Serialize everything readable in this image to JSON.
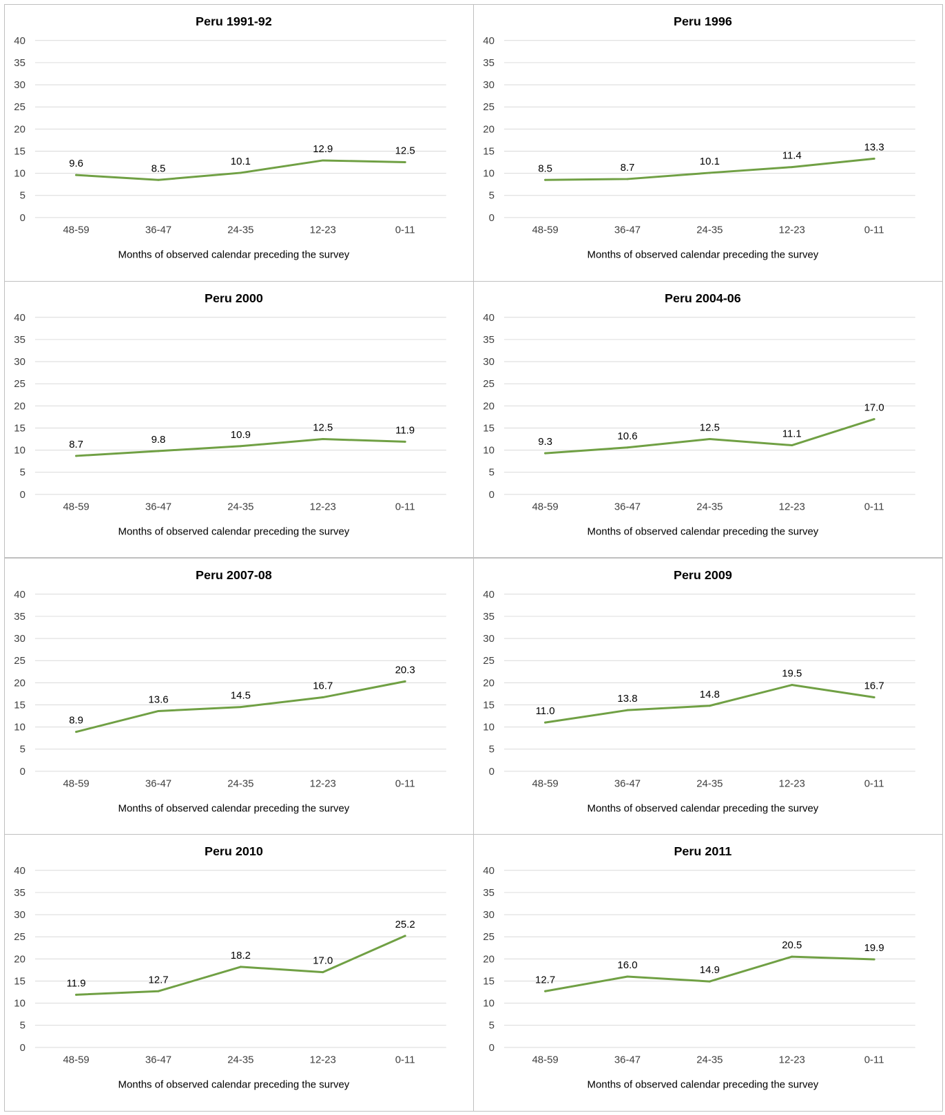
{
  "chart_data": [
    {
      "type": "line",
      "title": "Peru 1991-92",
      "xlabel": "Months of observed calendar preceding the survey",
      "ylabel": "",
      "ylim": [
        0,
        40
      ],
      "yticks": [
        "0",
        "5",
        "10",
        "15",
        "20",
        "25",
        "30",
        "35",
        "40"
      ],
      "categories": [
        "48-59",
        "36-47",
        "24-35",
        "12-23",
        "0-11"
      ],
      "values": [
        9.6,
        8.5,
        10.1,
        12.9,
        12.5
      ],
      "labels": [
        "9.6",
        "8.5",
        "10.1",
        "12.9",
        "12.5"
      ],
      "grid": true
    },
    {
      "type": "line",
      "title": "Peru 1996",
      "xlabel": "Months of observed calendar preceding the survey",
      "ylabel": "",
      "ylim": [
        0,
        40
      ],
      "yticks": [
        "0",
        "5",
        "10",
        "15",
        "20",
        "25",
        "30",
        "35",
        "40"
      ],
      "categories": [
        "48-59",
        "36-47",
        "24-35",
        "12-23",
        "0-11"
      ],
      "values": [
        8.5,
        8.7,
        10.1,
        11.4,
        13.3
      ],
      "labels": [
        "8.5",
        "8.7",
        "10.1",
        "11.4",
        "13.3"
      ],
      "grid": true
    },
    {
      "type": "line",
      "title": "Peru 2000",
      "xlabel": "Months of observed calendar preceding the survey",
      "ylabel": "",
      "ylim": [
        0,
        40
      ],
      "yticks": [
        "0",
        "5",
        "10",
        "15",
        "20",
        "25",
        "30",
        "35",
        "40"
      ],
      "categories": [
        "48-59",
        "36-47",
        "24-35",
        "12-23",
        "0-11"
      ],
      "values": [
        8.7,
        9.8,
        10.9,
        12.5,
        11.9
      ],
      "labels": [
        "8.7",
        "9.8",
        "10.9",
        "12.5",
        "11.9"
      ],
      "grid": true
    },
    {
      "type": "line",
      "title": "Peru 2004-06",
      "xlabel": "Months of observed calendar preceding the survey",
      "ylabel": "",
      "ylim": [
        0,
        40
      ],
      "yticks": [
        "0",
        "5",
        "10",
        "15",
        "20",
        "25",
        "30",
        "35",
        "40"
      ],
      "categories": [
        "48-59",
        "36-47",
        "24-35",
        "12-23",
        "0-11"
      ],
      "values": [
        9.3,
        10.6,
        12.5,
        11.1,
        17.0
      ],
      "labels": [
        "9.3",
        "10.6",
        "12.5",
        "11.1",
        "17.0"
      ],
      "grid": true
    },
    {
      "type": "line",
      "title": "Peru 2007-08",
      "xlabel": "Months of observed calendar preceding the survey",
      "ylabel": "",
      "ylim": [
        0,
        40
      ],
      "yticks": [
        "0",
        "5",
        "10",
        "15",
        "20",
        "25",
        "30",
        "35",
        "40"
      ],
      "categories": [
        "48-59",
        "36-47",
        "24-35",
        "12-23",
        "0-11"
      ],
      "values": [
        8.9,
        13.6,
        14.5,
        16.7,
        20.3
      ],
      "labels": [
        "8.9",
        "13.6",
        "14.5",
        "16.7",
        "20.3"
      ],
      "grid": true
    },
    {
      "type": "line",
      "title": "Peru 2009",
      "xlabel": "Months of observed calendar preceding the survey",
      "ylabel": "",
      "ylim": [
        0,
        40
      ],
      "yticks": [
        "0",
        "5",
        "10",
        "15",
        "20",
        "25",
        "30",
        "35",
        "40"
      ],
      "categories": [
        "48-59",
        "36-47",
        "24-35",
        "12-23",
        "0-11"
      ],
      "values": [
        11.0,
        13.8,
        14.8,
        19.5,
        16.7
      ],
      "labels": [
        "11.0",
        "13.8",
        "14.8",
        "19.5",
        "16.7"
      ],
      "grid": true
    },
    {
      "type": "line",
      "title": "Peru 2010",
      "xlabel": "Months of observed calendar preceding the survey",
      "ylabel": "",
      "ylim": [
        0,
        40
      ],
      "yticks": [
        "0",
        "5",
        "10",
        "15",
        "20",
        "25",
        "30",
        "35",
        "40"
      ],
      "categories": [
        "48-59",
        "36-47",
        "24-35",
        "12-23",
        "0-11"
      ],
      "values": [
        11.9,
        12.7,
        18.2,
        17.0,
        25.2
      ],
      "labels": [
        "11.9",
        "12.7",
        "18.2",
        "17.0",
        "25.2"
      ],
      "grid": true
    },
    {
      "type": "line",
      "title": "Peru 2011",
      "xlabel": "Months of observed calendar preceding the survey",
      "ylabel": "",
      "ylim": [
        0,
        40
      ],
      "yticks": [
        "0",
        "5",
        "10",
        "15",
        "20",
        "25",
        "30",
        "35",
        "40"
      ],
      "categories": [
        "48-59",
        "36-47",
        "24-35",
        "12-23",
        "0-11"
      ],
      "values": [
        12.7,
        16.0,
        14.9,
        20.5,
        19.9
      ],
      "labels": [
        "12.7",
        "16.0",
        "14.9",
        "20.5",
        "19.9"
      ],
      "grid": true
    }
  ],
  "colors": {
    "line": "#70a044",
    "grid": "#d9d9d9",
    "border": "#bfbfbf"
  }
}
